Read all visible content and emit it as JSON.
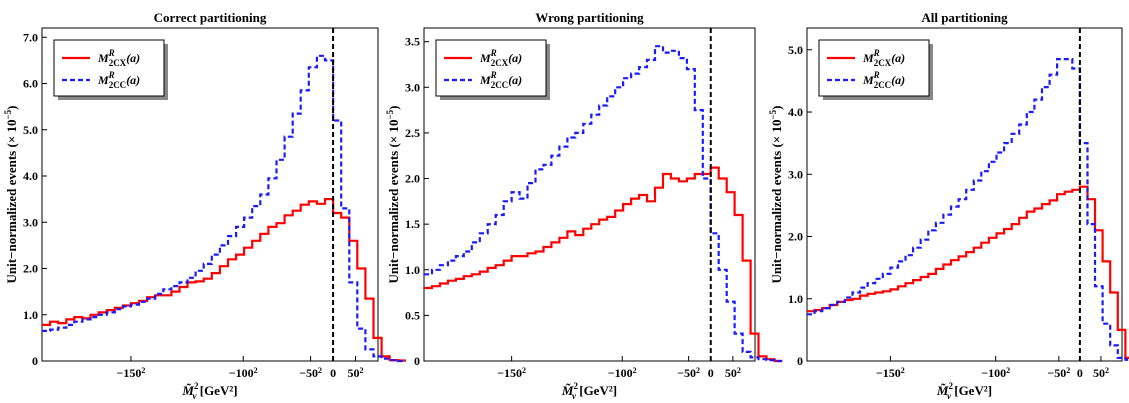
{
  "chart_data": [
    {
      "type": "line",
      "title": "Correct partitioning",
      "xlabel": "M̃²ᵥ [GeV²]",
      "ylabel": "Unit−normalized events (× 10⁻⁵)",
      "xlim": [
        -32400,
        5000
      ],
      "ylim": [
        0,
        7.2
      ],
      "xticks": [
        {
          "value": -22500,
          "label": "−150²"
        },
        {
          "value": -10000,
          "label": "−100²"
        },
        {
          "value": -2500,
          "label": "−50²"
        },
        {
          "value": 0,
          "label": "0"
        },
        {
          "value": 2500,
          "label": "50²"
        }
      ],
      "yticks": [
        {
          "value": 0,
          "label": "0"
        },
        {
          "value": 1,
          "label": "1.0"
        },
        {
          "value": 2,
          "label": "2.0"
        },
        {
          "value": 3,
          "label": "3.0"
        },
        {
          "value": 4,
          "label": "4.0"
        },
        {
          "value": 5,
          "label": "5.0"
        },
        {
          "value": 6,
          "label": "6.0"
        },
        {
          "value": 7,
          "label": "7.0"
        }
      ],
      "vline_x": 0,
      "legend": "top-left",
      "bin_edges_start": -32400,
      "bin_width": 900,
      "series": [
        {
          "name": "M²CX(a)",
          "label_main": "M",
          "label_sub": "2CX",
          "label_sup": "R",
          "label_arg": "(a)",
          "color": "#ff0000",
          "style": "solid",
          "values": [
            0.78,
            0.85,
            0.82,
            0.9,
            0.95,
            0.92,
            1.0,
            1.05,
            1.1,
            1.15,
            1.2,
            1.25,
            1.3,
            1.38,
            1.42,
            1.42,
            1.5,
            1.6,
            1.7,
            1.72,
            1.78,
            1.9,
            2.05,
            2.2,
            2.3,
            2.45,
            2.6,
            2.75,
            2.9,
            2.98,
            3.15,
            3.25,
            3.38,
            3.45,
            3.4,
            3.5,
            3.2,
            3.1,
            2.6,
            2.0,
            1.35,
            0.5,
            0.1,
            0.02,
            0.01
          ]
        },
        {
          "name": "M²CC(a)",
          "label_main": "M",
          "label_sub": "2CC",
          "label_sup": "R",
          "label_arg": "(a)",
          "color": "#1a1aff",
          "style": "dashed",
          "values": [
            0.65,
            0.68,
            0.72,
            0.78,
            0.85,
            0.9,
            0.95,
            1.0,
            1.05,
            1.12,
            1.18,
            1.22,
            1.28,
            1.35,
            1.45,
            1.55,
            1.62,
            1.7,
            1.8,
            1.95,
            2.1,
            2.3,
            2.5,
            2.7,
            2.9,
            3.1,
            3.35,
            3.6,
            3.95,
            4.35,
            4.85,
            5.35,
            5.85,
            6.35,
            6.6,
            6.5,
            5.2,
            3.3,
            1.7,
            0.7,
            0.25,
            0.1,
            0.05,
            0.02,
            0.0
          ]
        }
      ]
    },
    {
      "type": "line",
      "title": "Wrong partitioning",
      "xlabel": "M̃²ᵥ [GeV²]",
      "ylabel": "Unit−normalized events (× 10⁻⁵)",
      "xlim": [
        -32400,
        5000
      ],
      "ylim": [
        0,
        3.65
      ],
      "xticks": [
        {
          "value": -22500,
          "label": "−150²"
        },
        {
          "value": -10000,
          "label": "−100²"
        },
        {
          "value": -2500,
          "label": "−50²"
        },
        {
          "value": 0,
          "label": "0"
        },
        {
          "value": 2500,
          "label": "50²"
        }
      ],
      "yticks": [
        {
          "value": 0,
          "label": "0"
        },
        {
          "value": 0.5,
          "label": "0.5"
        },
        {
          "value": 1,
          "label": "1.0"
        },
        {
          "value": 1.5,
          "label": "1.5"
        },
        {
          "value": 2,
          "label": "2.0"
        },
        {
          "value": 2.5,
          "label": "2.5"
        },
        {
          "value": 3,
          "label": "3.0"
        },
        {
          "value": 3.5,
          "label": "3.5"
        }
      ],
      "vline_x": 0,
      "legend": "top-left",
      "bin_edges_start": -32400,
      "bin_width": 900,
      "series": [
        {
          "name": "M²CX(a)",
          "label_main": "M",
          "label_sub": "2CX",
          "label_sup": "R",
          "label_arg": "(a)",
          "color": "#ff0000",
          "style": "solid",
          "values": [
            0.8,
            0.82,
            0.85,
            0.88,
            0.9,
            0.93,
            0.95,
            0.98,
            1.02,
            1.05,
            1.1,
            1.15,
            1.15,
            1.18,
            1.2,
            1.25,
            1.3,
            1.35,
            1.42,
            1.38,
            1.45,
            1.5,
            1.55,
            1.58,
            1.65,
            1.72,
            1.78,
            1.82,
            1.75,
            1.9,
            2.05,
            2.0,
            1.97,
            2.0,
            2.05,
            2.05,
            2.12,
            2.0,
            1.85,
            1.6,
            1.1,
            0.3,
            0.05,
            0.02,
            0.0
          ]
        },
        {
          "name": "M²CC(a)",
          "label_main": "M",
          "label_sub": "2CC",
          "label_sup": "R",
          "label_arg": "(a)",
          "color": "#1a1aff",
          "style": "dashed",
          "values": [
            0.95,
            1.0,
            1.05,
            1.1,
            1.15,
            1.2,
            1.3,
            1.4,
            1.5,
            1.6,
            1.75,
            1.85,
            1.78,
            1.95,
            2.1,
            2.15,
            2.25,
            2.35,
            2.45,
            2.5,
            2.6,
            2.7,
            2.8,
            2.9,
            3.0,
            3.1,
            3.15,
            3.22,
            3.3,
            3.45,
            3.38,
            3.4,
            3.32,
            3.2,
            2.75,
            2.0,
            1.4,
            1.0,
            0.65,
            0.3,
            0.1,
            0.04,
            0.02,
            0.01,
            0.0
          ]
        }
      ]
    },
    {
      "type": "line",
      "title": "All partitioning",
      "xlabel": "M̃²ᵥ [GeV²]",
      "ylabel": "Unit−normalized events (× 10⁻⁵)",
      "xlim": [
        -32400,
        5000
      ],
      "ylim": [
        0,
        5.35
      ],
      "xticks": [
        {
          "value": -22500,
          "label": "−150²"
        },
        {
          "value": -10000,
          "label": "−100²"
        },
        {
          "value": -2500,
          "label": "−50²"
        },
        {
          "value": 0,
          "label": "0"
        },
        {
          "value": 2500,
          "label": "50²"
        }
      ],
      "yticks": [
        {
          "value": 0,
          "label": "0"
        },
        {
          "value": 1,
          "label": "1.0"
        },
        {
          "value": 2,
          "label": "2.0"
        },
        {
          "value": 3,
          "label": "3.0"
        },
        {
          "value": 4,
          "label": "4.0"
        },
        {
          "value": 5,
          "label": "5.0"
        }
      ],
      "vline_x": 0,
      "legend": "top-left",
      "bin_edges_start": -32400,
      "bin_width": 900,
      "series": [
        {
          "name": "M²CX(a)",
          "label_main": "M",
          "label_sub": "2CX",
          "label_sup": "R",
          "label_arg": "(a)",
          "color": "#ff0000",
          "style": "solid",
          "values": [
            0.8,
            0.82,
            0.85,
            0.9,
            0.95,
            0.98,
            1.0,
            1.05,
            1.08,
            1.1,
            1.12,
            1.15,
            1.2,
            1.25,
            1.3,
            1.35,
            1.4,
            1.48,
            1.55,
            1.62,
            1.68,
            1.75,
            1.82,
            1.9,
            1.98,
            2.05,
            2.12,
            2.2,
            2.3,
            2.4,
            2.45,
            2.52,
            2.58,
            2.68,
            2.72,
            2.75,
            2.8,
            2.6,
            2.1,
            1.6,
            1.1,
            0.5,
            0.05,
            0.01,
            0.0
          ]
        },
        {
          "name": "M²CC(a)",
          "label_main": "M",
          "label_sub": "2CC",
          "label_sup": "R",
          "label_arg": "(a)",
          "color": "#1a1aff",
          "style": "dashed",
          "values": [
            0.75,
            0.8,
            0.85,
            0.9,
            0.95,
            1.02,
            1.1,
            1.18,
            1.25,
            1.32,
            1.4,
            1.5,
            1.6,
            1.7,
            1.82,
            1.95,
            2.1,
            2.22,
            2.35,
            2.48,
            2.6,
            2.75,
            2.9,
            3.05,
            3.2,
            3.35,
            3.5,
            3.65,
            3.8,
            4.0,
            4.2,
            4.4,
            4.6,
            4.85,
            4.85,
            4.7,
            3.5,
            2.2,
            1.2,
            0.6,
            0.25,
            0.05,
            0.02,
            0.01,
            0.0
          ]
        }
      ]
    }
  ]
}
